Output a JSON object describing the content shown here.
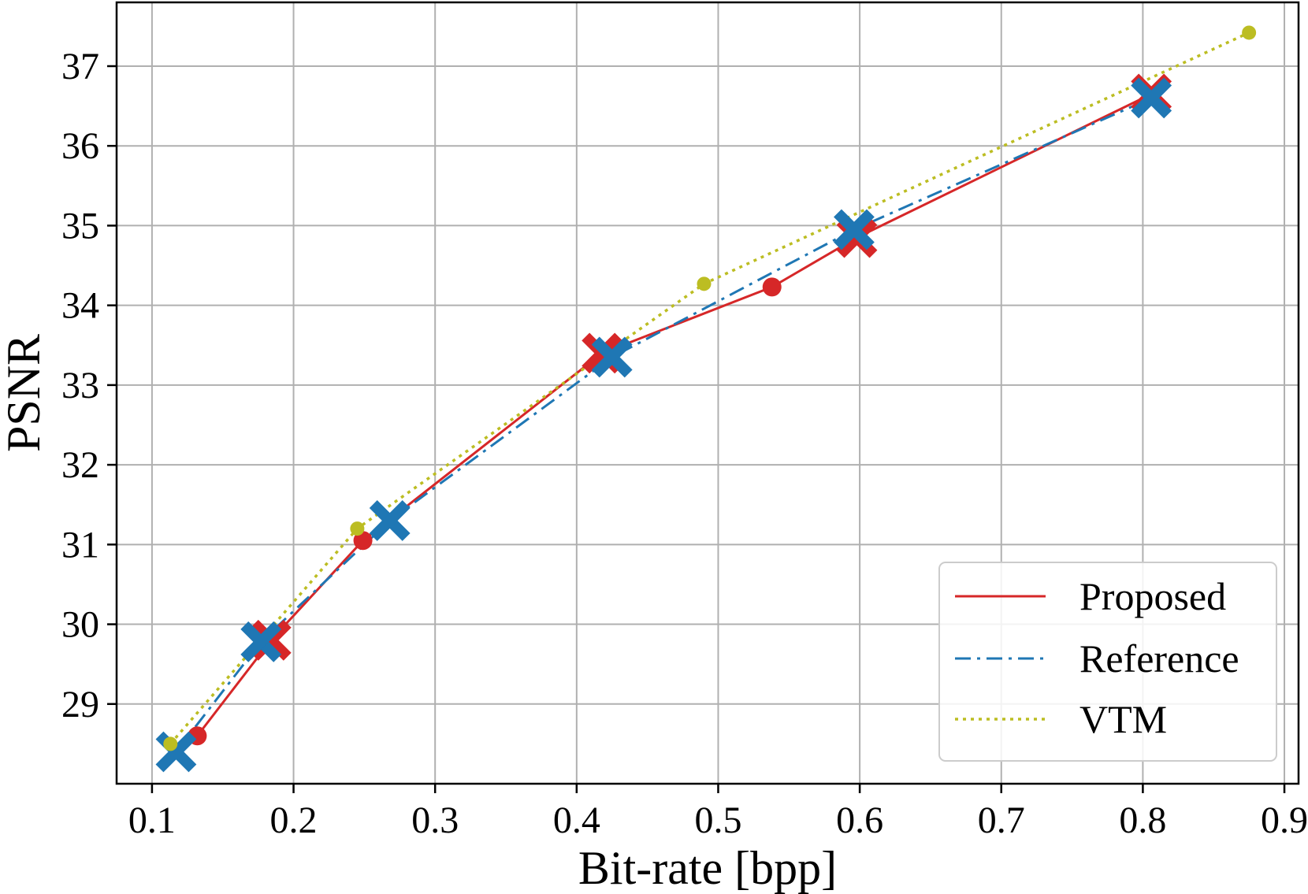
{
  "chart_data": {
    "type": "line",
    "title": "",
    "xlabel": "Bit-rate [bpp]",
    "ylabel": "PSNR",
    "xlim": [
      0.075,
      0.91
    ],
    "ylim": [
      28.0,
      37.8
    ],
    "xticks": [
      0.1,
      0.2,
      0.3,
      0.4,
      0.5,
      0.6,
      0.7,
      0.8,
      0.9
    ],
    "yticks": [
      29,
      30,
      31,
      32,
      33,
      34,
      35,
      36,
      37
    ],
    "xtick_labels": [
      "0.1",
      "0.2",
      "0.3",
      "0.4",
      "0.5",
      "0.6",
      "0.7",
      "0.8",
      "0.9"
    ],
    "ytick_labels": [
      "29",
      "30",
      "31",
      "32",
      "33",
      "34",
      "35",
      "36",
      "37"
    ],
    "grid": true,
    "legend_position": "bottom-right",
    "series": [
      {
        "name": "Proposed",
        "color": "#d62728",
        "line_style": "solid",
        "x": [
          0.132,
          0.184,
          0.249,
          0.418,
          0.538,
          0.598,
          0.806
        ],
        "y": [
          28.6,
          29.8,
          31.05,
          33.4,
          34.23,
          34.85,
          36.65
        ],
        "markers": [
          "circle",
          "x",
          "circle",
          "x",
          "circle",
          "x",
          "x"
        ]
      },
      {
        "name": "Reference",
        "color": "#1f77b4",
        "line_style": "dashdot",
        "x": [
          0.117,
          0.177,
          0.268,
          0.425,
          0.596,
          0.806
        ],
        "y": [
          28.4,
          29.78,
          31.3,
          33.35,
          34.95,
          36.6
        ],
        "markers": [
          "x",
          "x",
          "x",
          "x",
          "x",
          "x"
        ]
      },
      {
        "name": "VTM",
        "color": "#bcbd22",
        "line_style": "dotted",
        "x": [
          0.113,
          0.245,
          0.49,
          0.875
        ],
        "y": [
          28.5,
          31.2,
          34.27,
          37.42
        ],
        "markers": [
          "circle",
          "circle",
          "circle",
          "circle"
        ]
      }
    ]
  }
}
